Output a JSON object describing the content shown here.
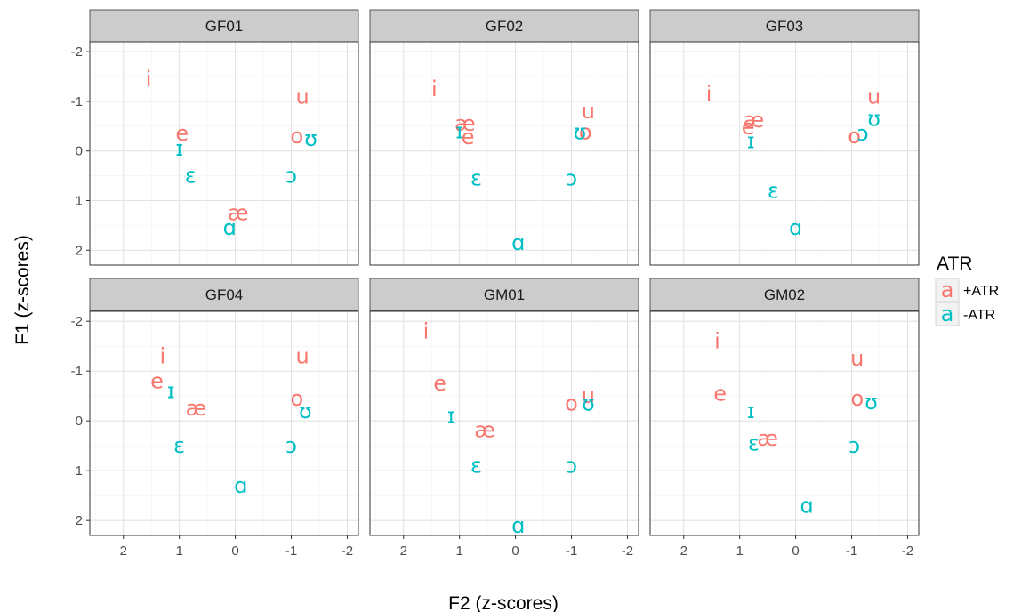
{
  "chart_data": {
    "type": "scatter",
    "xlabel": "F2 (z-scores)",
    "ylabel": "F1 (z-scores)",
    "x_reversed": true,
    "y_reversed": true,
    "xlim": [
      2.6,
      -2.2
    ],
    "ylim": [
      -2.2,
      2.3
    ],
    "x_ticks": [
      2,
      1,
      0,
      -1,
      -2
    ],
    "x_tick_labels": [
      "2",
      "1",
      "0",
      "-1",
      "-2"
    ],
    "y_ticks": [
      -2,
      -1,
      0,
      1,
      2
    ],
    "y_tick_labels": [
      "-2",
      "-1",
      "0",
      "1",
      "2"
    ],
    "grid": true,
    "legend": {
      "title": "ATR",
      "placement": "right",
      "entries": [
        {
          "key": "+ATR",
          "label": "+ATR",
          "glyph": "a",
          "color": "#F8766D"
        },
        {
          "key": "-ATR",
          "label": "-ATR",
          "glyph": "a",
          "color": "#00BFC4"
        }
      ]
    },
    "colors": {
      "+ATR": "#F8766D",
      "-ATR": "#00BFC4"
    },
    "panels": [
      {
        "name": "GF01",
        "points": [
          {
            "vowel": "i",
            "atr": "+ATR",
            "f2": 1.55,
            "f1": -1.45
          },
          {
            "vowel": "u",
            "atr": "+ATR",
            "f2": -1.2,
            "f1": -1.1
          },
          {
            "vowel": "e",
            "atr": "+ATR",
            "f2": 0.95,
            "f1": -0.35
          },
          {
            "vowel": "o",
            "atr": "+ATR",
            "f2": -1.1,
            "f1": -0.3
          },
          {
            "vowel": "æ",
            "atr": "+ATR",
            "f2": -0.05,
            "f1": 1.25
          },
          {
            "vowel": "ɪ",
            "atr": "-ATR",
            "f2": 1.0,
            "f1": -0.05
          },
          {
            "vowel": "ʊ",
            "atr": "-ATR",
            "f2": -1.35,
            "f1": -0.25
          },
          {
            "vowel": "ɛ",
            "atr": "-ATR",
            "f2": 0.8,
            "f1": 0.5
          },
          {
            "vowel": "ɔ",
            "atr": "-ATR",
            "f2": -1.0,
            "f1": 0.5
          },
          {
            "vowel": "ɑ",
            "atr": "-ATR",
            "f2": 0.1,
            "f1": 1.55
          }
        ]
      },
      {
        "name": "GF02",
        "points": [
          {
            "vowel": "i",
            "atr": "+ATR",
            "f2": 1.45,
            "f1": -1.25
          },
          {
            "vowel": "u",
            "atr": "+ATR",
            "f2": -1.3,
            "f1": -0.8
          },
          {
            "vowel": "æ",
            "atr": "+ATR",
            "f2": 0.9,
            "f1": -0.55
          },
          {
            "vowel": "e",
            "atr": "+ATR",
            "f2": 0.85,
            "f1": -0.28
          },
          {
            "vowel": "o",
            "atr": "+ATR",
            "f2": -1.25,
            "f1": -0.38
          },
          {
            "vowel": "ɪ",
            "atr": "-ATR",
            "f2": 1.0,
            "f1": -0.4
          },
          {
            "vowel": "ʊ",
            "atr": "-ATR",
            "f2": -1.15,
            "f1": -0.38
          },
          {
            "vowel": "ɛ",
            "atr": "-ATR",
            "f2": 0.7,
            "f1": 0.55
          },
          {
            "vowel": "ɔ",
            "atr": "-ATR",
            "f2": -1.0,
            "f1": 0.55
          },
          {
            "vowel": "ɑ",
            "atr": "-ATR",
            "f2": -0.05,
            "f1": 1.85
          }
        ]
      },
      {
        "name": "GF03",
        "points": [
          {
            "vowel": "i",
            "atr": "+ATR",
            "f2": 1.55,
            "f1": -1.15
          },
          {
            "vowel": "u",
            "atr": "+ATR",
            "f2": -1.4,
            "f1": -1.1
          },
          {
            "vowel": "æ",
            "atr": "+ATR",
            "f2": 0.75,
            "f1": -0.62
          },
          {
            "vowel": "e",
            "atr": "+ATR",
            "f2": 0.85,
            "f1": -0.48
          },
          {
            "vowel": "o",
            "atr": "+ATR",
            "f2": -1.05,
            "f1": -0.3
          },
          {
            "vowel": "ɪ",
            "atr": "-ATR",
            "f2": 0.8,
            "f1": -0.2
          },
          {
            "vowel": "ʊ",
            "atr": "-ATR",
            "f2": -1.4,
            "f1": -0.65
          },
          {
            "vowel": "ɔ",
            "atr": "-ATR",
            "f2": -1.2,
            "f1": -0.35
          },
          {
            "vowel": "ɛ",
            "atr": "-ATR",
            "f2": 0.4,
            "f1": 0.8
          },
          {
            "vowel": "ɑ",
            "atr": "-ATR",
            "f2": 0.0,
            "f1": 1.55
          }
        ]
      },
      {
        "name": "GF04",
        "points": [
          {
            "vowel": "i",
            "atr": "+ATR",
            "f2": 1.3,
            "f1": -1.3
          },
          {
            "vowel": "u",
            "atr": "+ATR",
            "f2": -1.2,
            "f1": -1.3
          },
          {
            "vowel": "e",
            "atr": "+ATR",
            "f2": 1.4,
            "f1": -0.8
          },
          {
            "vowel": "æ",
            "atr": "+ATR",
            "f2": 0.7,
            "f1": -0.25
          },
          {
            "vowel": "o",
            "atr": "+ATR",
            "f2": -1.1,
            "f1": -0.45
          },
          {
            "vowel": "ɪ",
            "atr": "-ATR",
            "f2": 1.15,
            "f1": -0.6
          },
          {
            "vowel": "ʊ",
            "atr": "-ATR",
            "f2": -1.25,
            "f1": -0.2
          },
          {
            "vowel": "ɛ",
            "atr": "-ATR",
            "f2": 1.0,
            "f1": 0.5
          },
          {
            "vowel": "ɔ",
            "atr": "-ATR",
            "f2": -1.0,
            "f1": 0.5
          },
          {
            "vowel": "ɑ",
            "atr": "-ATR",
            "f2": -0.1,
            "f1": 1.3
          }
        ]
      },
      {
        "name": "GM01",
        "points": [
          {
            "vowel": "i",
            "atr": "+ATR",
            "f2": 1.6,
            "f1": -1.8
          },
          {
            "vowel": "e",
            "atr": "+ATR",
            "f2": 1.35,
            "f1": -0.75
          },
          {
            "vowel": "o",
            "atr": "+ATR",
            "f2": -1.0,
            "f1": -0.35
          },
          {
            "vowel": "u",
            "atr": "+ATR",
            "f2": -1.3,
            "f1": -0.5
          },
          {
            "vowel": "æ",
            "atr": "+ATR",
            "f2": 0.55,
            "f1": 0.18
          },
          {
            "vowel": "ɪ",
            "atr": "-ATR",
            "f2": 1.15,
            "f1": -0.1
          },
          {
            "vowel": "ʊ",
            "atr": "-ATR",
            "f2": -1.3,
            "f1": -0.35
          },
          {
            "vowel": "ɛ",
            "atr": "-ATR",
            "f2": 0.7,
            "f1": 0.9
          },
          {
            "vowel": "ɔ",
            "atr": "-ATR",
            "f2": -1.0,
            "f1": 0.9
          },
          {
            "vowel": "ɑ",
            "atr": "-ATR",
            "f2": -0.05,
            "f1": 2.1
          }
        ]
      },
      {
        "name": "GM02",
        "points": [
          {
            "vowel": "i",
            "atr": "+ATR",
            "f2": 1.4,
            "f1": -1.6
          },
          {
            "vowel": "u",
            "atr": "+ATR",
            "f2": -1.1,
            "f1": -1.25
          },
          {
            "vowel": "e",
            "atr": "+ATR",
            "f2": 1.35,
            "f1": -0.55
          },
          {
            "vowel": "o",
            "atr": "+ATR",
            "f2": -1.1,
            "f1": -0.45
          },
          {
            "vowel": "æ",
            "atr": "+ATR",
            "f2": 0.5,
            "f1": 0.35
          },
          {
            "vowel": "ɪ",
            "atr": "-ATR",
            "f2": 0.8,
            "f1": -0.2
          },
          {
            "vowel": "ʊ",
            "atr": "-ATR",
            "f2": -1.35,
            "f1": -0.38
          },
          {
            "vowel": "ɛ",
            "atr": "-ATR",
            "f2": 0.75,
            "f1": 0.45
          },
          {
            "vowel": "ɔ",
            "atr": "-ATR",
            "f2": -1.05,
            "f1": 0.5
          },
          {
            "vowel": "ɑ",
            "atr": "-ATR",
            "f2": -0.2,
            "f1": 1.7
          }
        ]
      }
    ]
  }
}
